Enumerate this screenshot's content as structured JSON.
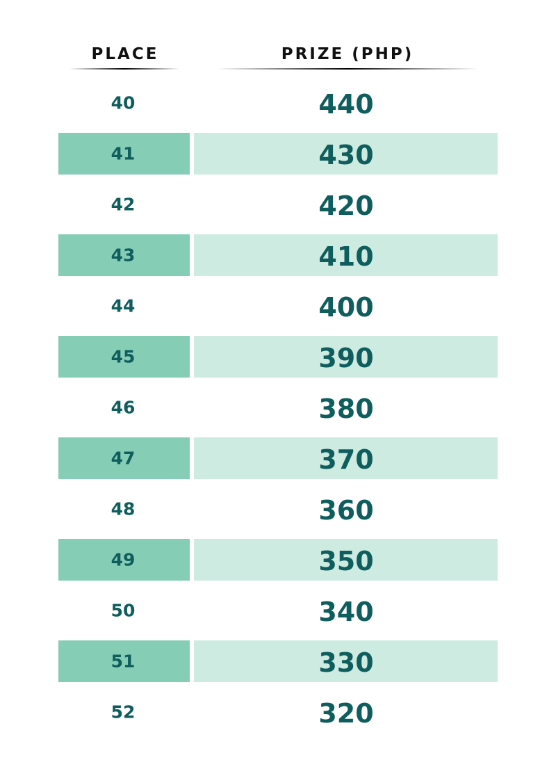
{
  "table": {
    "headers": [
      "PLACE",
      "PRIZE (PHP)"
    ],
    "rows": [
      [
        40,
        440
      ],
      [
        41,
        430
      ],
      [
        42,
        420
      ],
      [
        43,
        410
      ],
      [
        44,
        400
      ],
      [
        45,
        390
      ],
      [
        46,
        380
      ],
      [
        47,
        370
      ],
      [
        48,
        360
      ],
      [
        49,
        350
      ],
      [
        50,
        340
      ],
      [
        51,
        330
      ],
      [
        52,
        320
      ]
    ]
  }
}
